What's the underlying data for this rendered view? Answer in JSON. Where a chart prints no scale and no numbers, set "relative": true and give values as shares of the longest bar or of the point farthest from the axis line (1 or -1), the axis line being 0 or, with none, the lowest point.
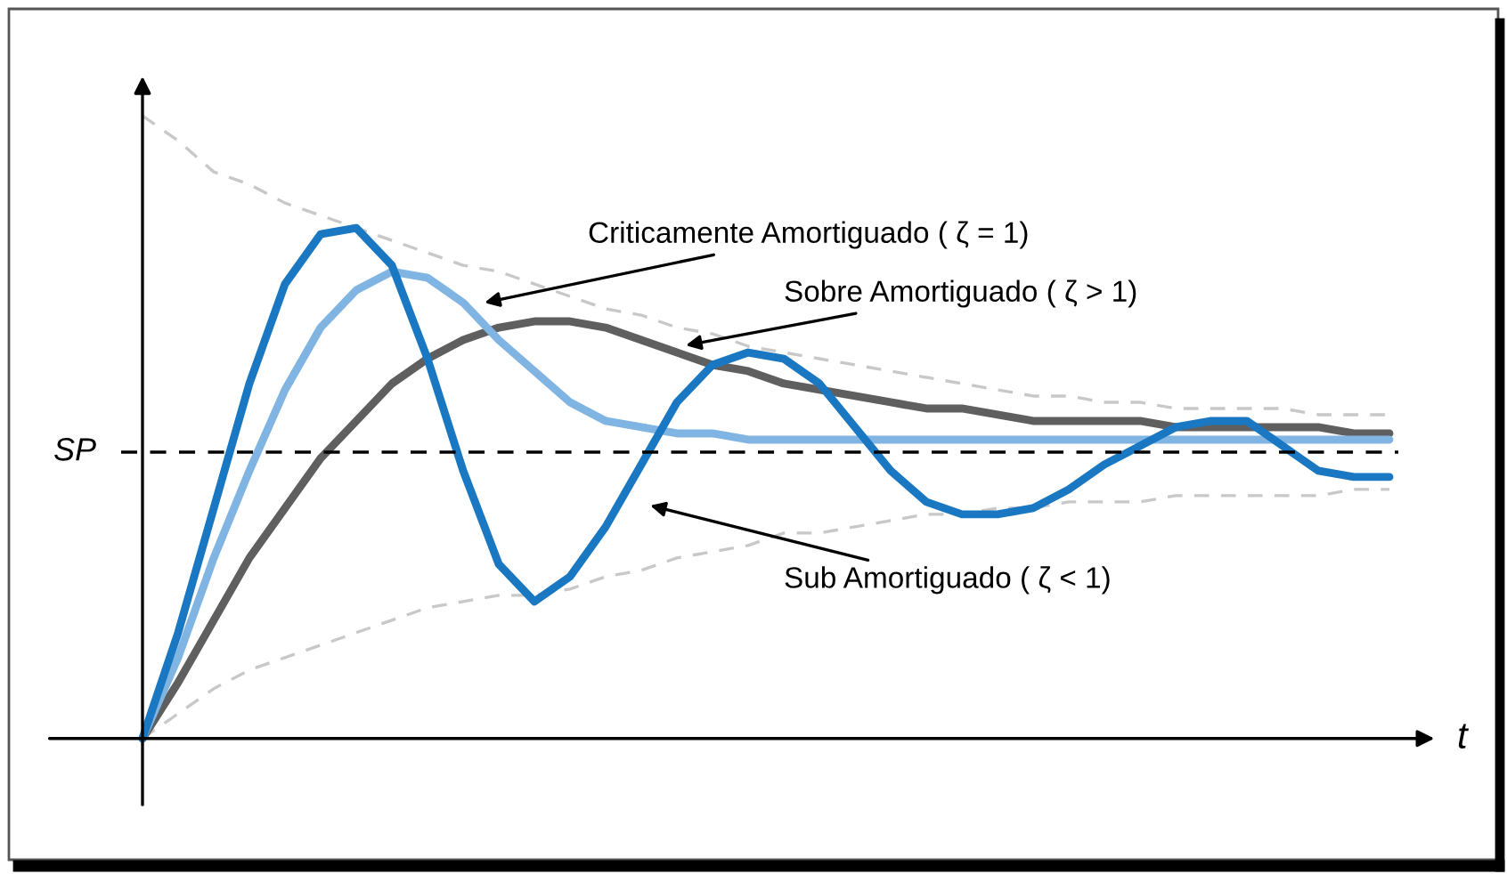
{
  "chart_data": {
    "type": "line",
    "relative": true,
    "xlabel": "t",
    "categories": [
      null,
      null,
      null,
      null,
      null,
      null,
      null,
      null,
      null,
      null,
      null,
      null,
      null,
      null,
      null,
      null,
      null,
      null,
      null,
      null,
      null,
      null,
      null,
      null,
      null,
      null,
      null,
      null,
      null,
      null,
      null,
      null,
      null,
      null,
      null,
      null
    ],
    "series": [
      {
        "color": "#c8c8c8",
        "line_style": "dashed",
        "values": [
          1,
          0.96,
          0.91,
          0.89,
          0.86,
          0.84,
          0.82,
          0.8,
          0.78,
          0.76,
          0.75,
          0.73,
          0.71,
          0.69,
          0.68,
          0.66,
          0.65,
          0.63,
          0.62,
          0.61,
          0.6,
          0.59,
          0.58,
          0.57,
          0.56,
          0.55,
          0.55,
          0.54,
          0.54,
          0.53,
          0.53,
          0.53,
          0.53,
          0.52,
          0.52,
          0.52
        ]
      },
      {
        "color": "#c8c8c8",
        "line_style": "dashed",
        "values": [
          0,
          0.04,
          0.08,
          0.11,
          0.13,
          0.15,
          0.17,
          0.19,
          0.21,
          0.22,
          0.23,
          0.23,
          0.24,
          0.26,
          0.27,
          0.29,
          0.3,
          0.31,
          0.33,
          0.33,
          0.34,
          0.35,
          0.36,
          0.36,
          0.37,
          0.37,
          0.38,
          0.38,
          0.38,
          0.39,
          0.39,
          0.39,
          0.39,
          0.39,
          0.4,
          0.4
        ]
      },
      {
        "color": "#5f5f5f",
        "values": [
          0,
          0.09,
          0.19,
          0.29,
          0.37,
          0.45,
          0.51,
          0.57,
          0.61,
          0.64,
          0.66,
          0.67,
          0.67,
          0.66,
          0.64,
          0.62,
          0.6,
          0.59,
          0.57,
          0.56,
          0.55,
          0.54,
          0.53,
          0.53,
          0.52,
          0.51,
          0.51,
          0.51,
          0.51,
          0.5,
          0.5,
          0.5,
          0.5,
          0.5,
          0.49,
          0.49
        ]
      },
      {
        "color": "#80b4e2",
        "values": [
          0,
          0.13,
          0.29,
          0.43,
          0.56,
          0.66,
          0.72,
          0.75,
          0.74,
          0.7,
          0.64,
          0.59,
          0.54,
          0.51,
          0.5,
          0.49,
          0.49,
          0.48,
          0.48,
          0.48,
          0.48,
          0.48,
          0.48,
          0.48,
          0.48,
          0.48,
          0.48,
          0.48,
          0.48,
          0.48,
          0.48,
          0.48,
          0.48,
          0.48,
          0.48,
          0.48
        ]
      },
      {
        "color": "#1a78c2",
        "values": [
          0,
          0.17,
          0.37,
          0.57,
          0.73,
          0.81,
          0.82,
          0.76,
          0.61,
          0.43,
          0.28,
          0.22,
          0.26,
          0.34,
          0.44,
          0.54,
          0.6,
          0.62,
          0.61,
          0.57,
          0.5,
          0.43,
          0.38,
          0.36,
          0.36,
          0.37,
          0.4,
          0.44,
          0.47,
          0.5,
          0.51,
          0.51,
          0.47,
          0.43,
          0.42,
          0.42
        ]
      }
    ],
    "ref_lines": [
      {
        "axis": "y",
        "value": 0.46,
        "label": "SP",
        "color": "#000000",
        "line_style": "dashed"
      }
    ],
    "annotations": [
      "Criticamente Amortiguado ( ζ = 1)",
      "Sobre Amortiguado ( ζ > 1)",
      "Sub Amortiguado ( ζ < 1)"
    ],
    "legend": false
  }
}
